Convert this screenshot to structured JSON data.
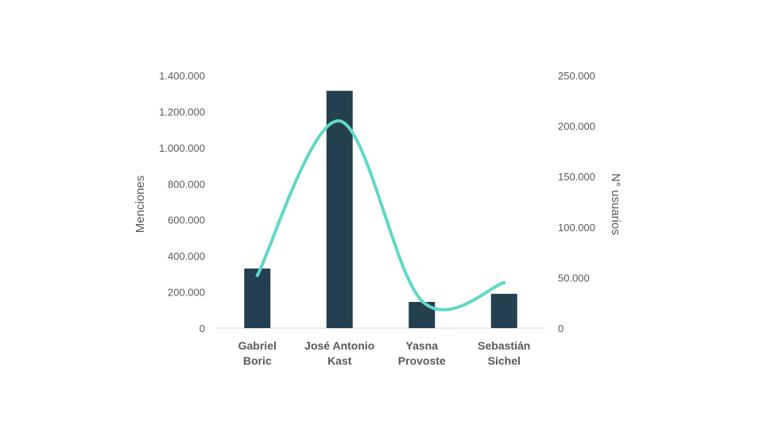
{
  "chart_data": {
    "type": "bar",
    "categories": [
      [
        "Gabriel",
        "Boric"
      ],
      [
        "José Antonio",
        "Kast"
      ],
      [
        "Yasna",
        "Provoste"
      ],
      [
        "Sebastián",
        "Sichel"
      ]
    ],
    "series": [
      {
        "type": "bar",
        "axis": "left",
        "values": [
          330000,
          1315000,
          145000,
          190000
        ],
        "color": "#243f50"
      },
      {
        "type": "line",
        "axis": "right",
        "smooth": true,
        "values": [
          52000,
          205000,
          27000,
          45000
        ],
        "color": "#5fd8c8"
      }
    ],
    "ylabel": "Menciones",
    "ylabel_right": "N° usuarios",
    "ylim": [
      0,
      1400000
    ],
    "ylim_right": [
      0,
      250000
    ],
    "yticks": [
      "0",
      "200.000",
      "400.000",
      "600.000",
      "800.000",
      "1.000.000",
      "1.200.000",
      "1.400.000"
    ],
    "yticks_right": [
      "0",
      "50.000",
      "100.000",
      "150.000",
      "200.000",
      "250.000"
    ],
    "grid": false,
    "legend": "none"
  }
}
